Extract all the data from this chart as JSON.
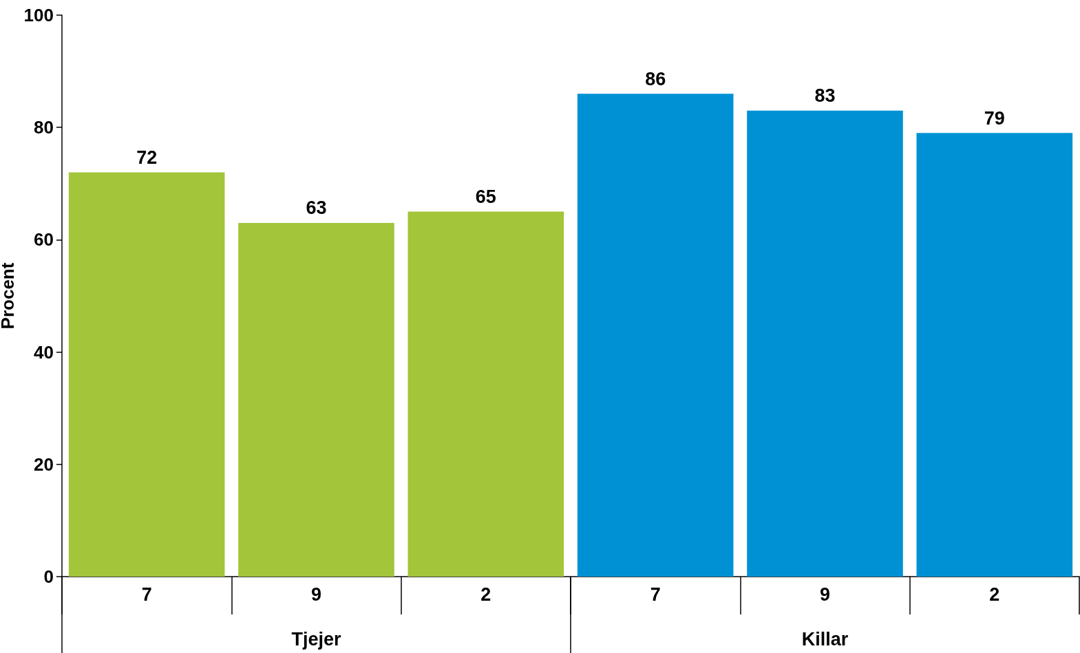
{
  "chart_data": {
    "type": "bar",
    "ylabel": "Procent",
    "categories": [
      "7",
      "9",
      "2",
      "7",
      "9",
      "2"
    ],
    "values": [
      72,
      63,
      65,
      86,
      83,
      79
    ],
    "colors": [
      "#a2c53a",
      "#a2c53a",
      "#a2c53a",
      "#0091d5",
      "#0091d5",
      "#0091d5"
    ],
    "ylim": [
      0,
      100
    ],
    "yticks": [
      0,
      20,
      40,
      60,
      80,
      100
    ],
    "data_labels": true,
    "annotations": [
      "Tjejer",
      "Killar"
    ]
  }
}
